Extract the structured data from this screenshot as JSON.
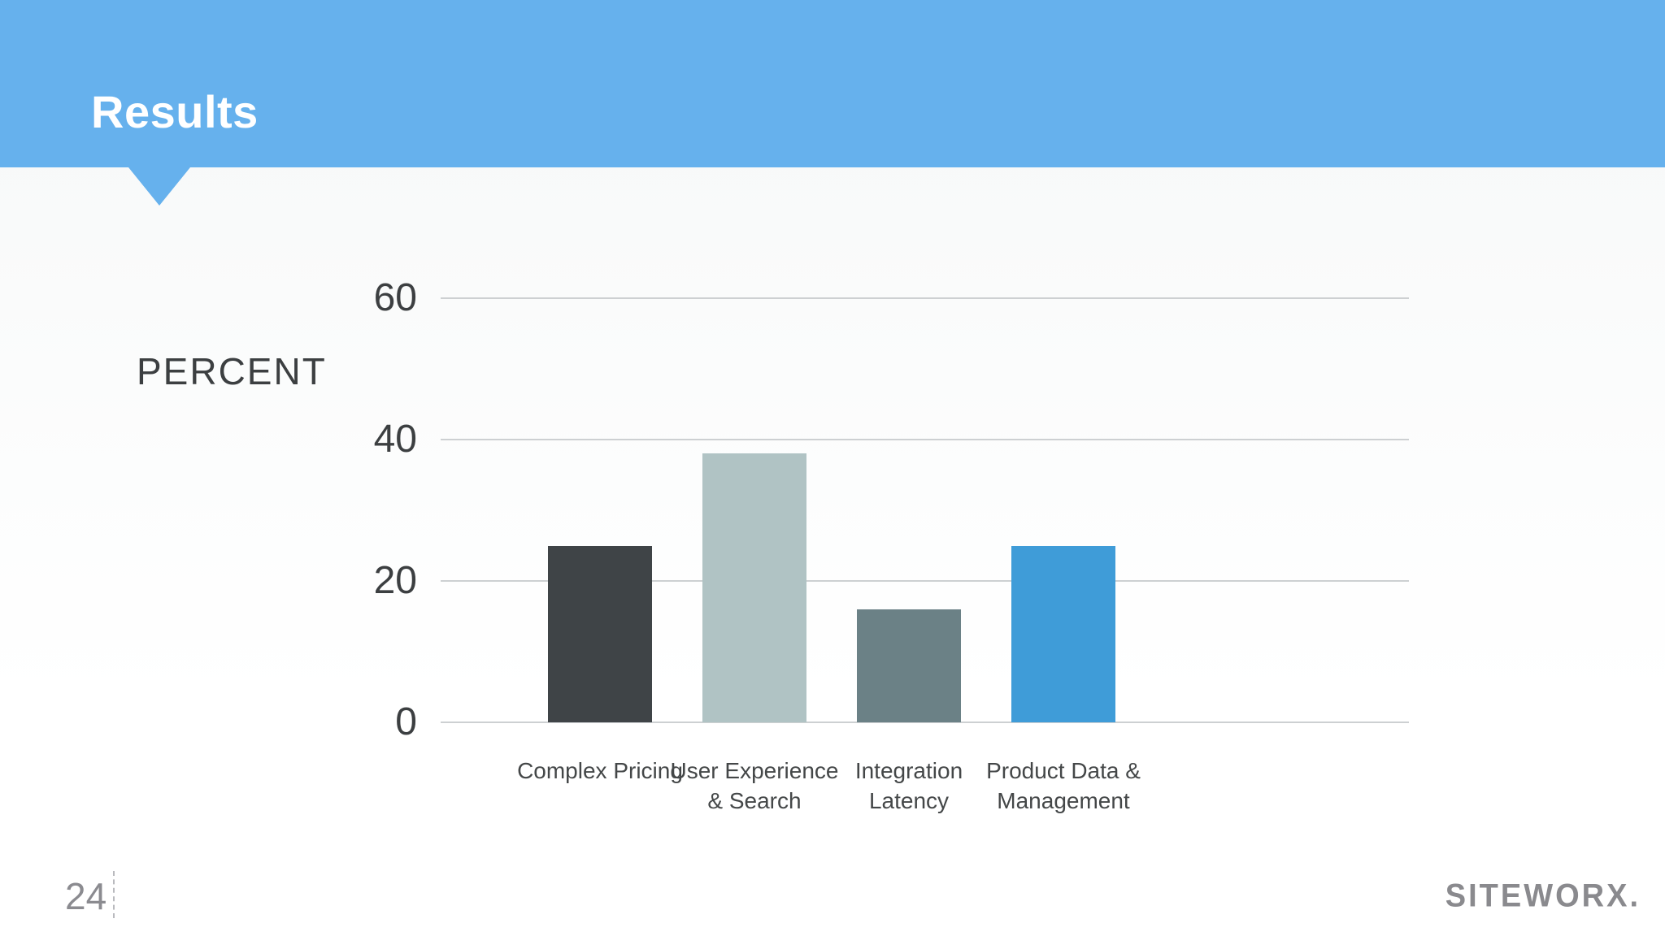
{
  "slide": {
    "title": "Results",
    "page_number": "24",
    "brand": "SITEWORX.",
    "colors": {
      "banner_blue": "#66b1ed",
      "gridline_gray": "#cdd0d2",
      "axis_text": "#3c3f41",
      "footer_gray": "#8b8b90"
    }
  },
  "chart_data": {
    "type": "bar",
    "title": "Results",
    "ylabel": "PERCENT",
    "xlabel": "",
    "categories": [
      "Complex Pricing",
      "User Experience & Search",
      "Integration Latency",
      "Product Data & Management"
    ],
    "category_lines": [
      [
        "Complex Pricing"
      ],
      [
        "User Experience",
        "& Search"
      ],
      [
        "Integration",
        "Latency"
      ],
      [
        "Product Data &",
        "Management"
      ]
    ],
    "values": [
      25,
      38,
      16,
      25
    ],
    "bar_colors": [
      "#3f4447",
      "#b0c3c4",
      "#6b8186",
      "#3f9cd8"
    ],
    "yticks": [
      0,
      20,
      40,
      60
    ],
    "ylim": [
      0,
      66
    ],
    "grid": "horizontal",
    "legend": "none"
  }
}
